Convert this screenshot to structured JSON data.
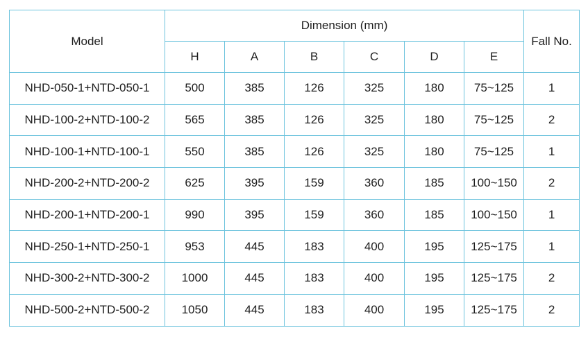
{
  "table": {
    "header": {
      "model": "Model",
      "dimension": "Dimension (mm)",
      "columns": [
        "H",
        "A",
        "B",
        "C",
        "D",
        "E"
      ],
      "fall": "Fall No."
    },
    "rows": [
      [
        "NHD-050-1+NTD-050-1",
        500,
        385,
        126,
        325,
        180,
        "75~125",
        1
      ],
      [
        "NHD-100-2+NTD-100-2",
        565,
        385,
        126,
        325,
        180,
        "75~125",
        2
      ],
      [
        "NHD-100-1+NTD-100-1",
        550,
        385,
        126,
        325,
        180,
        "75~125",
        1
      ],
      [
        "NHD-200-2+NTD-200-2",
        625,
        395,
        159,
        360,
        185,
        "100~150",
        2
      ],
      [
        "NHD-200-1+NTD-200-1",
        990,
        395,
        159,
        360,
        185,
        "100~150",
        1
      ],
      [
        "NHD-250-1+NTD-250-1",
        953,
        445,
        183,
        400,
        195,
        "125~175",
        1
      ],
      [
        "NHD-300-2+NTD-300-2",
        1000,
        445,
        183,
        400,
        195,
        "125~175",
        2
      ],
      [
        "NHD-500-2+NTD-500-2",
        1050,
        445,
        183,
        400,
        195,
        "125~175",
        2
      ]
    ]
  }
}
